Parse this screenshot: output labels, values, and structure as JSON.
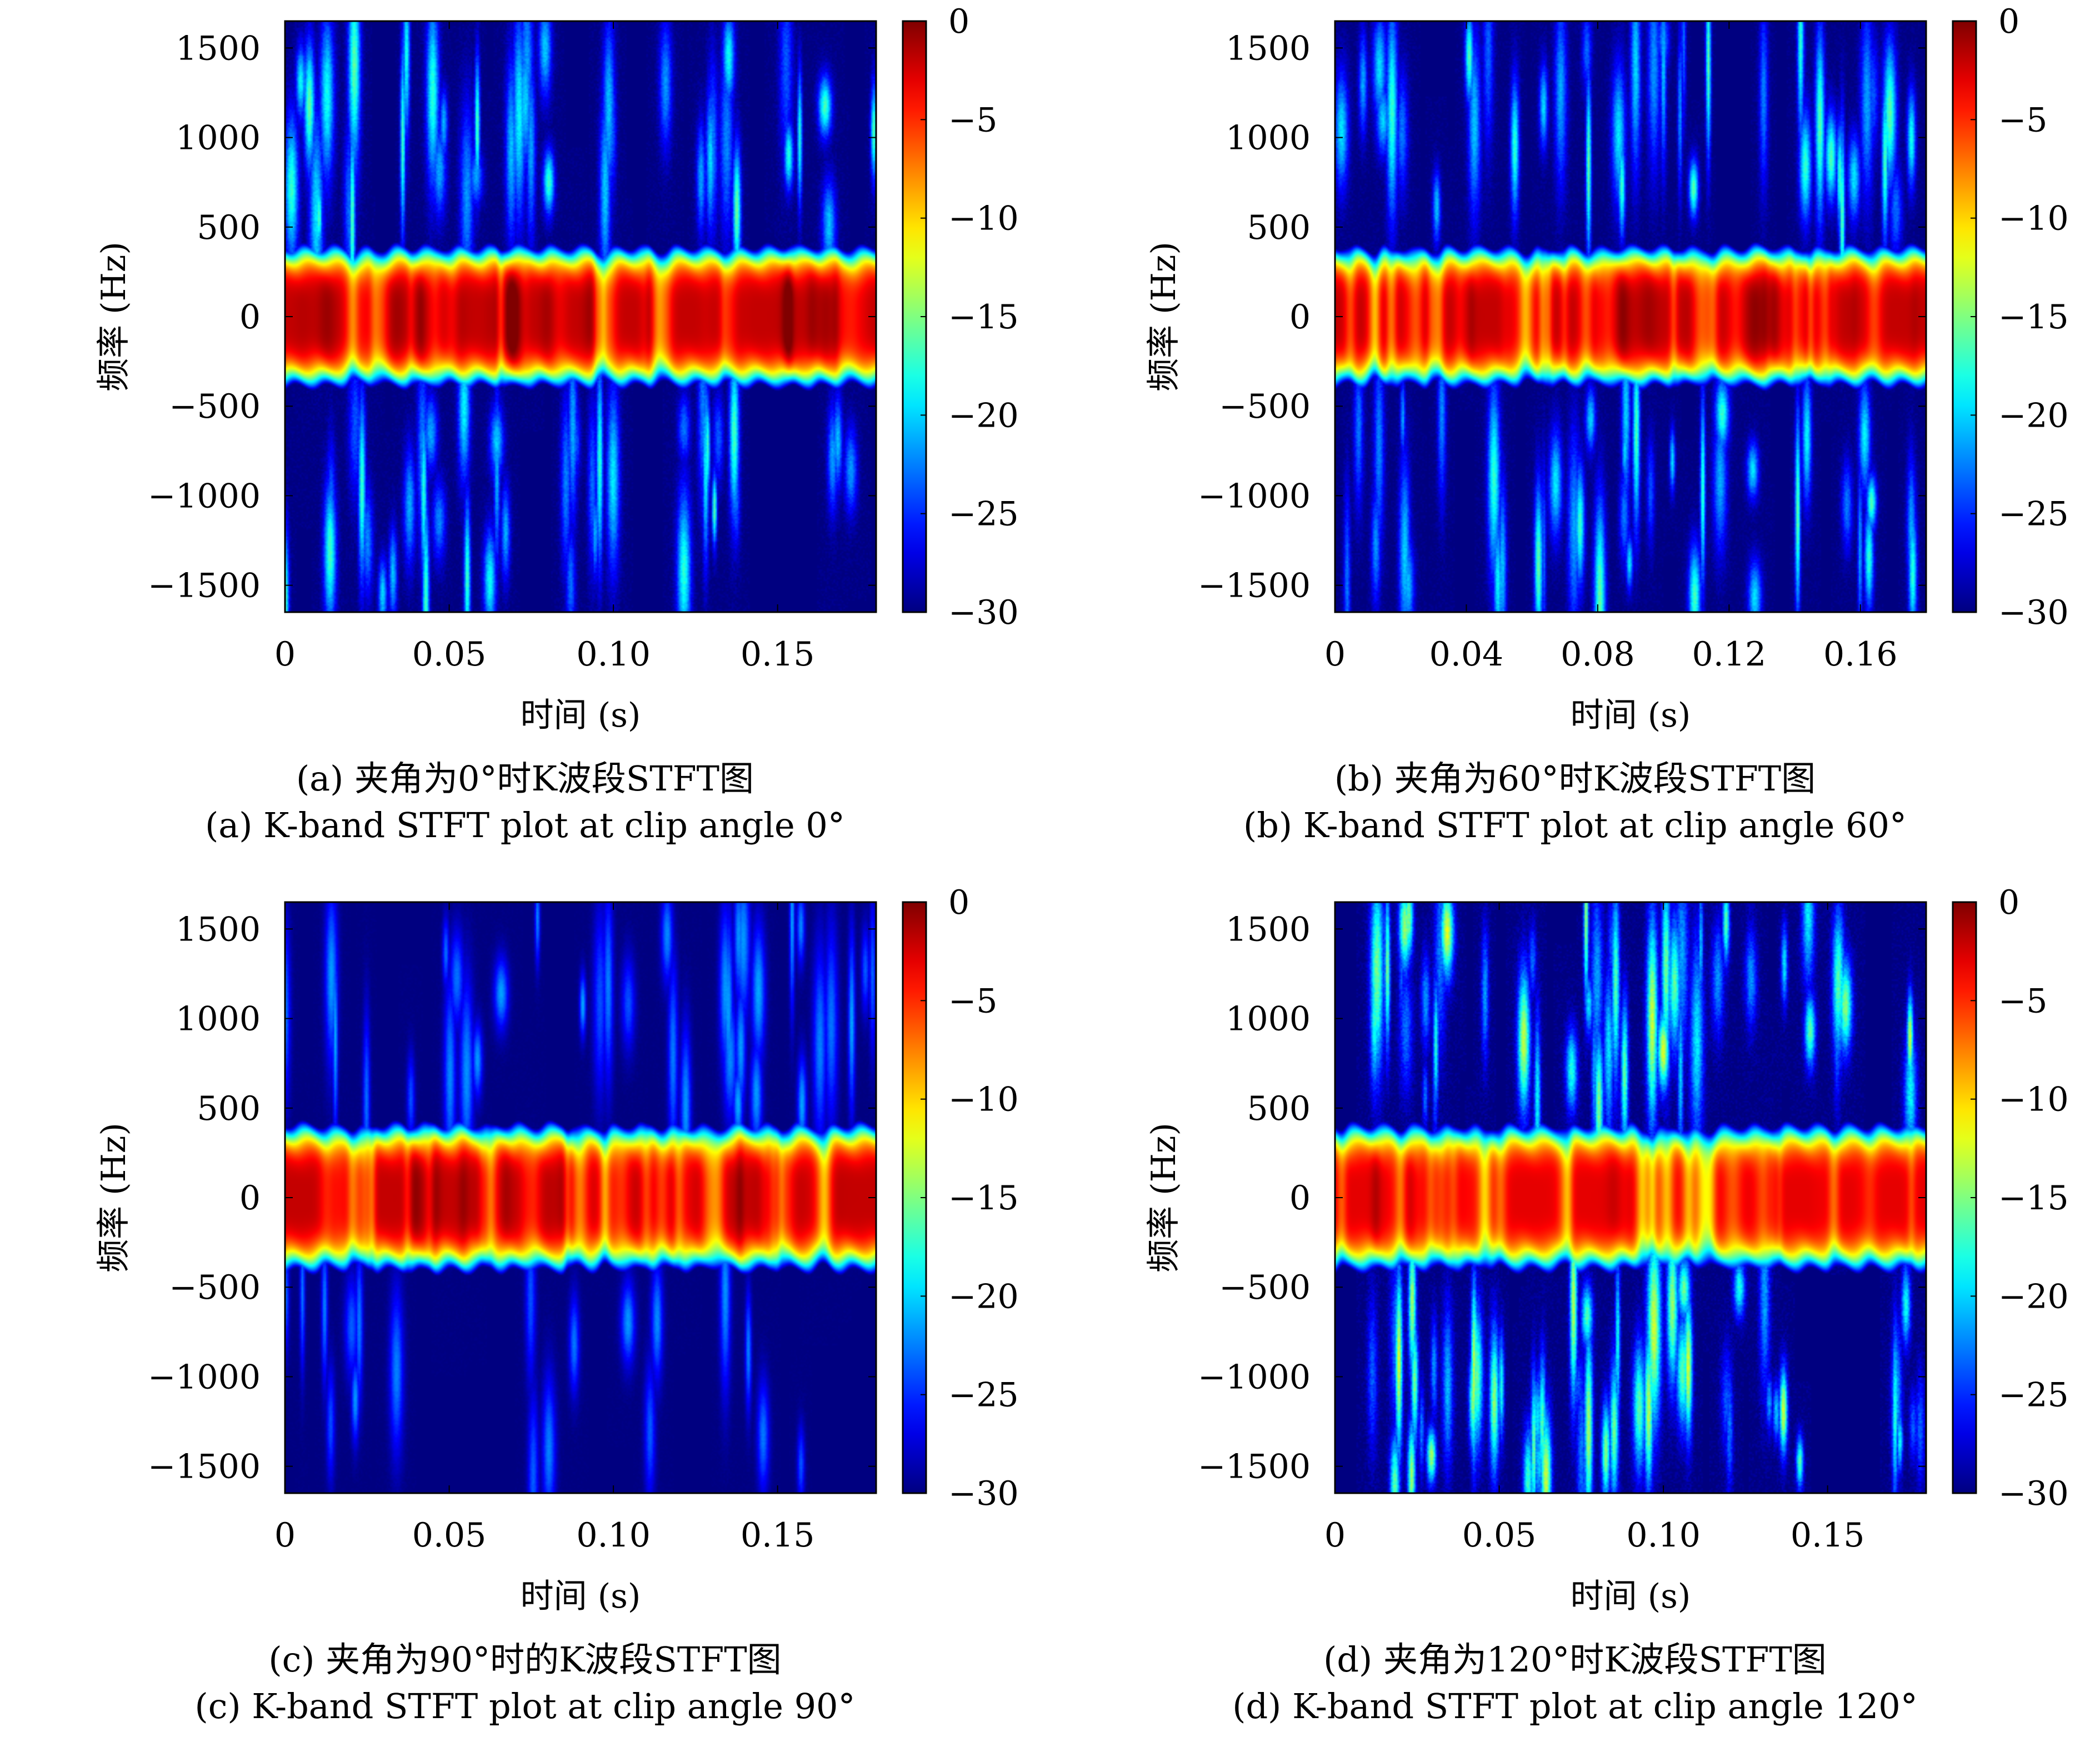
{
  "chart_data": [
    {
      "type": "heatmap",
      "panel": "a",
      "caption_zh": "(a) 夹角为0°时K波段STFT图",
      "caption_en": "(a) K-band STFT plot at clip angle 0°",
      "xlabel": "时间 (s)",
      "ylabel": "频率 (Hz)",
      "xlim": [
        0,
        0.18
      ],
      "ylim": [
        -1650,
        1650
      ],
      "xticks": [
        0,
        0.05,
        0.1,
        0.15
      ],
      "xtick_labels": [
        "0",
        "0.05",
        "0.10",
        "0.15"
      ],
      "yticks": [
        1500,
        1000,
        500,
        0,
        -500,
        -1000,
        -1500
      ],
      "ytick_labels": [
        "1500",
        "1000",
        "500",
        "0",
        "−500",
        "−1000",
        "−1500"
      ],
      "colorbar": {
        "range": [
          -30,
          0
        ],
        "ticks": [
          0,
          -5,
          -10,
          -15,
          -20,
          -25,
          -30
        ],
        "tick_labels": [
          "0",
          "−5",
          "−10",
          "−15",
          "−20",
          "−25",
          "−30"
        ],
        "colormap": "jet"
      },
      "band": {
        "center_hz": 0,
        "halfwidth_hz": 400,
        "peak_db": -2
      },
      "noise_level": "medium"
    },
    {
      "type": "heatmap",
      "panel": "b",
      "caption_zh": "(b) 夹角为60°时K波段STFT图",
      "caption_en": "(b) K-band STFT plot at clip angle 60°",
      "xlabel": "时间 (s)",
      "ylabel": "频率 (Hz)",
      "xlim": [
        0,
        0.18
      ],
      "ylim": [
        -1650,
        1650
      ],
      "xticks": [
        0,
        0.04,
        0.08,
        0.12,
        0.16
      ],
      "xtick_labels": [
        "0",
        "0.04",
        "0.08",
        "0.12",
        "0.16"
      ],
      "yticks": [
        1500,
        1000,
        500,
        0,
        -500,
        -1000,
        -1500
      ],
      "ytick_labels": [
        "1500",
        "1000",
        "500",
        "0",
        "−500",
        "−1000",
        "−1500"
      ],
      "colorbar": {
        "range": [
          -30,
          0
        ],
        "ticks": [
          0,
          -5,
          -10,
          -15,
          -20,
          -25,
          -30
        ],
        "tick_labels": [
          "0",
          "−5",
          "−10",
          "−15",
          "−20",
          "−25",
          "−30"
        ],
        "colormap": "jet"
      },
      "band": {
        "center_hz": 0,
        "halfwidth_hz": 400,
        "peak_db": -2
      },
      "noise_level": "medium"
    },
    {
      "type": "heatmap",
      "panel": "c",
      "caption_zh": "(c) 夹角为90°时的K波段STFT图",
      "caption_en": "(c) K-band STFT plot at clip angle 90°",
      "xlabel": "时间 (s)",
      "ylabel": "频率 (Hz)",
      "xlim": [
        0,
        0.18
      ],
      "ylim": [
        -1650,
        1650
      ],
      "xticks": [
        0,
        0.05,
        0.1,
        0.15
      ],
      "xtick_labels": [
        "0",
        "0.05",
        "0.10",
        "0.15"
      ],
      "yticks": [
        1500,
        1000,
        500,
        0,
        -500,
        -1000,
        -1500
      ],
      "ytick_labels": [
        "1500",
        "1000",
        "500",
        "0",
        "−500",
        "−1000",
        "−1500"
      ],
      "colorbar": {
        "range": [
          -30,
          0
        ],
        "ticks": [
          0,
          -5,
          -10,
          -15,
          -20,
          -25,
          -30
        ],
        "tick_labels": [
          "0",
          "−5",
          "−10",
          "−15",
          "−20",
          "−25",
          "−30"
        ],
        "colormap": "jet"
      },
      "band": {
        "center_hz": 0,
        "halfwidth_hz": 420,
        "peak_db": -2
      },
      "noise_level": "low"
    },
    {
      "type": "heatmap",
      "panel": "d",
      "caption_zh": "(d) 夹角为120°时K波段STFT图",
      "caption_en": "(d) K-band STFT plot at clip angle 120°",
      "xlabel": "时间 (s)",
      "ylabel": "频率 (Hz)",
      "xlim": [
        0,
        0.18
      ],
      "ylim": [
        -1650,
        1650
      ],
      "xticks": [
        0,
        0.05,
        0.1,
        0.15
      ],
      "xtick_labels": [
        "0",
        "0.05",
        "0.10",
        "0.15"
      ],
      "yticks": [
        1500,
        1000,
        500,
        0,
        -500,
        -1000,
        -1500
      ],
      "ytick_labels": [
        "1500",
        "1000",
        "500",
        "0",
        "−500",
        "−1000",
        "−1500"
      ],
      "colorbar": {
        "range": [
          -30,
          0
        ],
        "ticks": [
          0,
          -5,
          -10,
          -15,
          -20,
          -25,
          -30
        ],
        "tick_labels": [
          "0",
          "−5",
          "−10",
          "−15",
          "−20",
          "−25",
          "−30"
        ],
        "colormap": "jet"
      },
      "band": {
        "center_hz": 0,
        "halfwidth_hz": 420,
        "peak_db": -3
      },
      "noise_level": "high"
    }
  ]
}
